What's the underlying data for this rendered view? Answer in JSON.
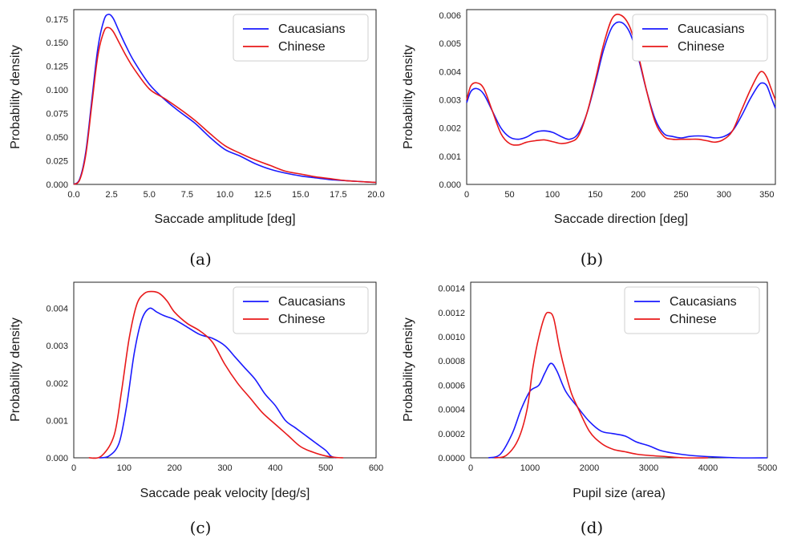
{
  "chart_data": [
    {
      "type": "line",
      "caption": "(a)",
      "xlabel": "Saccade amplitude [deg]",
      "ylabel": "Probability density",
      "xlim": [
        0,
        20
      ],
      "ylim": [
        0,
        0.185
      ],
      "xticks": [
        0,
        2.5,
        5,
        7.5,
        10,
        12.5,
        15,
        17.5,
        20
      ],
      "xtick_labels": [
        "0.0",
        "2.5",
        "5.0",
        "7.5",
        "10.0",
        "12.5",
        "15.0",
        "17.5",
        "20.0"
      ],
      "yticks": [
        0,
        0.025,
        0.05,
        0.075,
        0.1,
        0.125,
        0.15,
        0.175
      ],
      "ytick_labels": [
        "0.000",
        "0.025",
        "0.050",
        "0.075",
        "0.100",
        "0.125",
        "0.150",
        "0.175"
      ],
      "grid": false,
      "legend": "top-right",
      "series": [
        {
          "name": "Caucasians",
          "color": "#1a1aff",
          "x": [
            0,
            0.4,
            0.8,
            1.2,
            1.6,
            2.0,
            2.3,
            2.6,
            3.0,
            3.5,
            4.0,
            5.0,
            6.0,
            7.0,
            8.0,
            9.0,
            10.0,
            11.0,
            12.0,
            13.0,
            14.0,
            15.0,
            16.0,
            17.0,
            18.0,
            19.0,
            20.0
          ],
          "y": [
            0.0,
            0.006,
            0.035,
            0.09,
            0.145,
            0.174,
            0.18,
            0.176,
            0.162,
            0.145,
            0.13,
            0.106,
            0.09,
            0.077,
            0.065,
            0.05,
            0.037,
            0.03,
            0.022,
            0.016,
            0.012,
            0.009,
            0.007,
            0.005,
            0.004,
            0.003,
            0.002
          ]
        },
        {
          "name": "Chinese",
          "color": "#e8191a",
          "x": [
            0,
            0.4,
            0.8,
            1.2,
            1.6,
            2.0,
            2.3,
            2.6,
            3.0,
            3.5,
            4.0,
            5.0,
            6.0,
            7.0,
            8.0,
            9.0,
            10.0,
            11.0,
            12.0,
            13.0,
            14.0,
            15.0,
            16.0,
            17.0,
            18.0,
            19.0,
            20.0
          ],
          "y": [
            0.0,
            0.005,
            0.032,
            0.085,
            0.137,
            0.162,
            0.166,
            0.162,
            0.15,
            0.135,
            0.122,
            0.101,
            0.091,
            0.08,
            0.068,
            0.054,
            0.041,
            0.033,
            0.026,
            0.02,
            0.014,
            0.011,
            0.008,
            0.006,
            0.004,
            0.003,
            0.002
          ]
        }
      ]
    },
    {
      "type": "line",
      "caption": "(b)",
      "xlabel": "Saccade direction [deg]",
      "ylabel": "Probability density",
      "xlim": [
        0,
        360
      ],
      "ylim": [
        0,
        0.0062
      ],
      "xticks": [
        0,
        50,
        100,
        150,
        200,
        250,
        300,
        350
      ],
      "xtick_labels": [
        "0",
        "50",
        "100",
        "150",
        "200",
        "250",
        "300",
        "350"
      ],
      "yticks": [
        0,
        0.001,
        0.002,
        0.003,
        0.004,
        0.005,
        0.006
      ],
      "ytick_labels": [
        "0.000",
        "0.001",
        "0.002",
        "0.003",
        "0.004",
        "0.005",
        "0.006"
      ],
      "grid": false,
      "legend": "top-right",
      "series": [
        {
          "name": "Caucasians",
          "color": "#1a1aff",
          "x": [
            0,
            5,
            12,
            20,
            30,
            40,
            50,
            60,
            70,
            80,
            90,
            100,
            110,
            120,
            130,
            140,
            150,
            160,
            170,
            180,
            190,
            200,
            210,
            220,
            230,
            240,
            250,
            260,
            270,
            280,
            290,
            300,
            310,
            320,
            330,
            340,
            345,
            350,
            355,
            360
          ],
          "y": [
            0.0029,
            0.0033,
            0.0034,
            0.0032,
            0.0026,
            0.002,
            0.00168,
            0.0016,
            0.00168,
            0.00185,
            0.0019,
            0.00185,
            0.0017,
            0.0016,
            0.0018,
            0.0025,
            0.0036,
            0.0048,
            0.0056,
            0.00575,
            0.0054,
            0.0045,
            0.0033,
            0.0023,
            0.0018,
            0.0017,
            0.00165,
            0.0017,
            0.00172,
            0.0017,
            0.00165,
            0.0017,
            0.0019,
            0.0024,
            0.003,
            0.0035,
            0.0036,
            0.0035,
            0.0031,
            0.0027
          ]
        },
        {
          "name": "Chinese",
          "color": "#e8191a",
          "x": [
            0,
            5,
            12,
            20,
            30,
            40,
            50,
            60,
            70,
            80,
            90,
            100,
            110,
            120,
            130,
            140,
            150,
            160,
            170,
            180,
            190,
            200,
            210,
            220,
            230,
            240,
            250,
            260,
            270,
            280,
            290,
            300,
            310,
            320,
            330,
            340,
            345,
            350,
            355,
            360
          ],
          "y": [
            0.003,
            0.0035,
            0.0036,
            0.0034,
            0.0026,
            0.0018,
            0.00145,
            0.0014,
            0.0015,
            0.00155,
            0.00158,
            0.00152,
            0.00145,
            0.0015,
            0.0017,
            0.0025,
            0.0037,
            0.005,
            0.0059,
            0.006,
            0.0056,
            0.0046,
            0.0033,
            0.0022,
            0.0017,
            0.0016,
            0.0016,
            0.0016,
            0.0016,
            0.00155,
            0.0015,
            0.0016,
            0.0019,
            0.0026,
            0.0033,
            0.0039,
            0.004,
            0.0038,
            0.0034,
            0.003
          ]
        }
      ]
    },
    {
      "type": "line",
      "caption": "(c)",
      "xlabel": "Saccade peak velocity [deg/s]",
      "ylabel": "Probability density",
      "xlim": [
        0,
        600
      ],
      "ylim": [
        0,
        0.0047
      ],
      "xticks": [
        0,
        100,
        200,
        300,
        400,
        500,
        600
      ],
      "xtick_labels": [
        "0",
        "100",
        "200",
        "300",
        "400",
        "500",
        "600"
      ],
      "yticks": [
        0,
        0.001,
        0.002,
        0.003,
        0.004
      ],
      "ytick_labels": [
        "0.000",
        "0.001",
        "0.002",
        "0.003",
        "0.004"
      ],
      "grid": false,
      "legend": "top-right",
      "series": [
        {
          "name": "Caucasians",
          "color": "#1a1aff",
          "x": [
            50,
            70,
            90,
            105,
            120,
            135,
            150,
            165,
            180,
            200,
            225,
            250,
            275,
            300,
            320,
            340,
            360,
            380,
            400,
            420,
            440,
            460,
            480,
            500,
            510,
            520
          ],
          "y": [
            0.0,
            5e-05,
            0.0004,
            0.0014,
            0.0028,
            0.0037,
            0.004,
            0.0039,
            0.0038,
            0.0037,
            0.0035,
            0.0033,
            0.0032,
            0.003,
            0.0027,
            0.0024,
            0.0021,
            0.0017,
            0.0014,
            0.001,
            0.0008,
            0.0006,
            0.0004,
            0.0002,
            5e-05,
            0.0
          ]
        },
        {
          "name": "Chinese",
          "color": "#e8191a",
          "x": [
            30,
            55,
            80,
            95,
            110,
            125,
            140,
            155,
            170,
            185,
            200,
            225,
            250,
            275,
            300,
            325,
            350,
            375,
            400,
            425,
            450,
            475,
            500,
            520,
            535
          ],
          "y": [
            0.0,
            5e-05,
            0.0006,
            0.0018,
            0.0032,
            0.0041,
            0.0044,
            0.00445,
            0.0044,
            0.0042,
            0.0039,
            0.0036,
            0.0034,
            0.0031,
            0.0025,
            0.002,
            0.0016,
            0.0012,
            0.0009,
            0.0006,
            0.0003,
            0.00015,
            5e-05,
            1e-05,
            0.0
          ]
        }
      ]
    },
    {
      "type": "line",
      "caption": "(d)",
      "xlabel": "Pupil size (area)",
      "ylabel": "Probability density",
      "xlim": [
        0,
        5000
      ],
      "ylim": [
        0,
        0.00145
      ],
      "xticks": [
        0,
        1000,
        2000,
        3000,
        4000,
        5000
      ],
      "xtick_labels": [
        "0",
        "1000",
        "2000",
        "3000",
        "4000",
        "5000"
      ],
      "yticks": [
        0,
        0.0002,
        0.0004,
        0.0006,
        0.0008,
        0.001,
        0.0012,
        0.0014
      ],
      "ytick_labels": [
        "0.0000",
        "0.0002",
        "0.0004",
        "0.0006",
        "0.0008",
        "0.0010",
        "0.0012",
        "0.0014"
      ],
      "grid": false,
      "legend": "top-right",
      "series": [
        {
          "name": "Caucasians",
          "color": "#1a1aff",
          "x": [
            300,
            500,
            700,
            850,
            1000,
            1150,
            1250,
            1350,
            1450,
            1600,
            1800,
            2000,
            2200,
            2400,
            2600,
            2800,
            3000,
            3200,
            3400,
            3700,
            4000,
            4500,
            5000
          ],
          "y": [
            0.0,
            3e-05,
            0.0002,
            0.0004,
            0.00055,
            0.0006,
            0.0007,
            0.00078,
            0.00072,
            0.00055,
            0.00042,
            0.0003,
            0.00022,
            0.0002,
            0.00018,
            0.00013,
            0.0001,
            6e-05,
            4e-05,
            2e-05,
            1e-05,
            0.0,
            0.0
          ]
        },
        {
          "name": "Chinese",
          "color": "#e8191a",
          "x": [
            400,
            600,
            800,
            950,
            1050,
            1150,
            1250,
            1320,
            1400,
            1500,
            1600,
            1700,
            1800,
            2000,
            2200,
            2400,
            2600,
            2800,
            3000,
            3300,
            3600,
            4000
          ],
          "y": [
            0.0,
            2e-05,
            0.00015,
            0.0004,
            0.00075,
            0.001,
            0.00117,
            0.0012,
            0.00115,
            0.0009,
            0.0007,
            0.00053,
            0.00042,
            0.00022,
            0.00012,
            7e-05,
            5e-05,
            3e-05,
            2e-05,
            1e-05,
            0.0,
            0.0
          ]
        }
      ]
    }
  ]
}
